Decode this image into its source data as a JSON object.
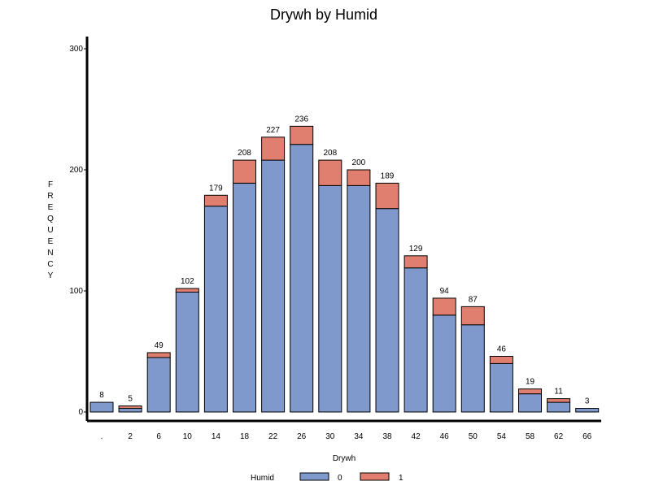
{
  "chart_data": {
    "type": "bar",
    "stacked": true,
    "title": "Drywh by Humid",
    "xlabel": "Drywh",
    "ylabel": "FREQUENCY",
    "ylim": [
      0,
      300
    ],
    "yticks": [
      0,
      100,
      200,
      300
    ],
    "grid": false,
    "legend_position": "bottom",
    "categories": [
      ".",
      "2",
      "6",
      "10",
      "14",
      "18",
      "22",
      "26",
      "30",
      "34",
      "38",
      "42",
      "46",
      "50",
      "54",
      "58",
      "62",
      "66"
    ],
    "totals": [
      8,
      5,
      49,
      102,
      179,
      208,
      227,
      236,
      208,
      200,
      189,
      129,
      94,
      87,
      46,
      19,
      11,
      3
    ],
    "series": [
      {
        "name": "0",
        "color": "#7f99cc",
        "values": [
          8,
          3,
          45,
          99,
          170,
          189,
          208,
          221,
          187,
          187,
          168,
          119,
          80,
          72,
          40,
          15,
          8,
          3
        ]
      },
      {
        "name": "1",
        "color": "#e07f70",
        "values": [
          0,
          2,
          4,
          3,
          9,
          19,
          19,
          15,
          21,
          13,
          21,
          10,
          14,
          15,
          6,
          4,
          3,
          0
        ]
      }
    ],
    "legend": {
      "title": "Humid"
    }
  }
}
